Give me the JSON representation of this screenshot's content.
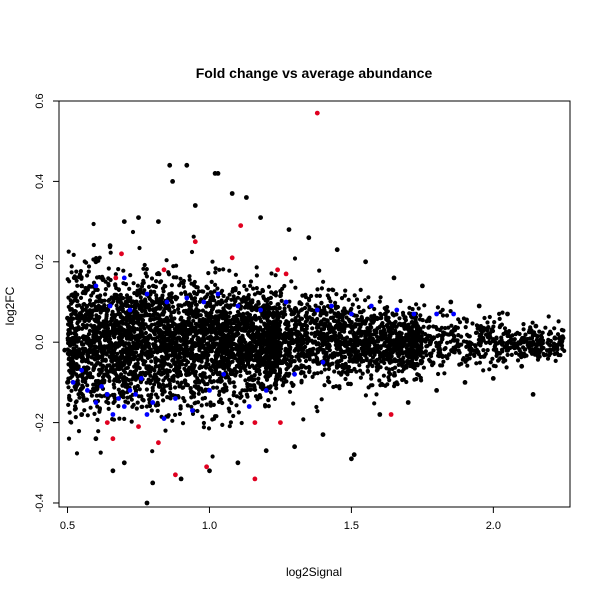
{
  "chart_data": {
    "type": "scatter",
    "title": "Fold change vs average abundance",
    "xlabel": "log2Signal",
    "ylabel": "log2FC",
    "xlim": [
      0.47,
      2.27
    ],
    "ylim": [
      -0.41,
      0.6
    ],
    "x_ticks": [
      0.5,
      1.0,
      1.5,
      2.0
    ],
    "x_tick_labels": [
      "0.5",
      "1.0",
      "1.5",
      "2.0"
    ],
    "y_ticks": [
      -0.4,
      -0.2,
      0.0,
      0.2,
      0.4,
      0.6
    ],
    "y_tick_labels": [
      "-0.4",
      "-0.2",
      "0.0",
      "0.2",
      "0.4",
      "0.6"
    ],
    "grid": false,
    "legend": "none",
    "series": [
      {
        "color": "#000000",
        "points": [
          [
            0.78,
            -0.4
          ],
          [
            0.86,
            0.44
          ],
          [
            0.92,
            0.44
          ],
          [
            1.02,
            0.42
          ],
          [
            1.03,
            0.42
          ],
          [
            0.87,
            0.4
          ],
          [
            0.95,
            0.34
          ],
          [
            1.08,
            0.37
          ],
          [
            1.13,
            0.36
          ],
          [
            0.7,
            0.3
          ],
          [
            0.75,
            0.31
          ],
          [
            0.82,
            0.3
          ],
          [
            1.18,
            0.31
          ],
          [
            1.28,
            0.28
          ],
          [
            1.35,
            0.26
          ],
          [
            1.45,
            0.23
          ],
          [
            1.55,
            0.2
          ],
          [
            1.65,
            0.16
          ],
          [
            1.75,
            0.14
          ],
          [
            1.85,
            0.1
          ],
          [
            1.95,
            0.09
          ],
          [
            2.05,
            0.07
          ],
          [
            2.15,
            0.04
          ],
          [
            2.24,
            0.0
          ],
          [
            2.2,
            -0.02
          ],
          [
            2.1,
            -0.06
          ],
          [
            2.0,
            -0.09
          ],
          [
            1.9,
            -0.1
          ],
          [
            1.8,
            -0.12
          ],
          [
            1.7,
            -0.15
          ],
          [
            1.6,
            -0.18
          ],
          [
            1.51,
            -0.28
          ],
          [
            1.5,
            -0.29
          ],
          [
            1.4,
            -0.23
          ],
          [
            1.3,
            -0.26
          ],
          [
            1.2,
            -0.27
          ],
          [
            1.1,
            -0.3
          ],
          [
            1.0,
            -0.32
          ],
          [
            0.9,
            -0.34
          ],
          [
            0.8,
            -0.35
          ],
          [
            0.7,
            -0.3
          ],
          [
            0.66,
            -0.32
          ],
          [
            0.6,
            -0.24
          ],
          [
            0.55,
            -0.18
          ],
          [
            0.5,
            -0.1
          ],
          [
            0.49,
            -0.02
          ],
          [
            0.5,
            0.06
          ],
          [
            0.55,
            0.14
          ],
          [
            0.6,
            0.2
          ],
          [
            0.65,
            0.24
          ],
          [
            1.21,
            -0.06
          ],
          [
            2.14,
            -0.13
          ]
        ]
      },
      {
        "color": "#0000ff",
        "points": [
          [
            0.52,
            -0.1
          ],
          [
            0.55,
            -0.07
          ],
          [
            0.57,
            -0.12
          ],
          [
            0.6,
            -0.15
          ],
          [
            0.62,
            -0.11
          ],
          [
            0.64,
            -0.13
          ],
          [
            0.66,
            -0.18
          ],
          [
            0.68,
            -0.14
          ],
          [
            0.7,
            -0.16
          ],
          [
            0.72,
            -0.12
          ],
          [
            0.74,
            -0.13
          ],
          [
            0.76,
            -0.09
          ],
          [
            0.78,
            -0.18
          ],
          [
            0.8,
            -0.15
          ],
          [
            0.84,
            -0.19
          ],
          [
            0.88,
            -0.14
          ],
          [
            0.94,
            -0.17
          ],
          [
            1.0,
            -0.12
          ],
          [
            1.05,
            -0.08
          ],
          [
            1.14,
            -0.16
          ],
          [
            1.2,
            -0.12
          ],
          [
            1.3,
            -0.08
          ],
          [
            1.4,
            -0.05
          ],
          [
            0.6,
            0.14
          ],
          [
            0.65,
            0.09
          ],
          [
            0.7,
            0.16
          ],
          [
            0.72,
            0.08
          ],
          [
            0.78,
            0.12
          ],
          [
            0.85,
            0.1
          ],
          [
            0.92,
            0.11
          ],
          [
            0.98,
            0.1
          ],
          [
            1.03,
            0.12
          ],
          [
            1.1,
            0.09
          ],
          [
            1.18,
            0.08
          ],
          [
            1.27,
            0.1
          ],
          [
            1.38,
            0.08
          ],
          [
            1.43,
            0.09
          ],
          [
            1.5,
            0.07
          ],
          [
            1.57,
            0.09
          ],
          [
            1.66,
            0.08
          ],
          [
            1.72,
            0.07
          ],
          [
            1.8,
            0.07
          ],
          [
            1.86,
            0.07
          ]
        ]
      },
      {
        "color": "#e00020",
        "points": [
          [
            1.38,
            0.57
          ],
          [
            1.11,
            0.29
          ],
          [
            0.95,
            0.25
          ],
          [
            0.69,
            0.22
          ],
          [
            1.08,
            0.21
          ],
          [
            0.84,
            0.18
          ],
          [
            1.24,
            0.18
          ],
          [
            0.67,
            0.16
          ],
          [
            1.27,
            0.17
          ],
          [
            0.64,
            -0.2
          ],
          [
            0.75,
            -0.21
          ],
          [
            0.66,
            -0.24
          ],
          [
            0.82,
            -0.25
          ],
          [
            1.16,
            -0.2
          ],
          [
            1.25,
            -0.2
          ],
          [
            1.64,
            -0.18
          ],
          [
            0.88,
            -0.33
          ],
          [
            0.99,
            -0.31
          ],
          [
            1.16,
            -0.34
          ]
        ]
      }
    ]
  }
}
